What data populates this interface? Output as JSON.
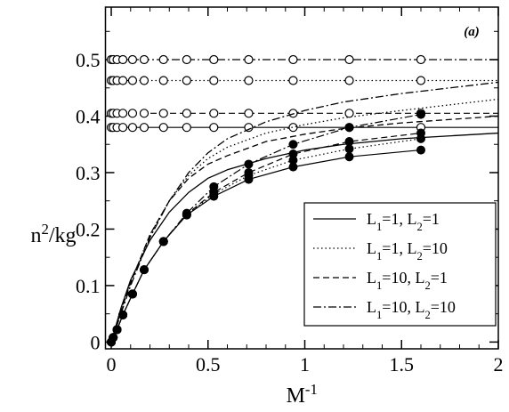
{
  "chart_data": {
    "type": "line",
    "annotation": "(a)",
    "xlabel": [
      "M",
      "-1"
    ],
    "ylabel": [
      "n",
      "2",
      "/kg"
    ],
    "xlim": [
      -0.03,
      2
    ],
    "ylim": [
      -0.012,
      0.593
    ],
    "xticks": [
      0,
      0.5,
      1,
      1.5,
      2
    ],
    "yticks": [
      0,
      0.1,
      0.2,
      0.3,
      0.4,
      0.5
    ],
    "xminorticks": [
      0.1,
      0.2,
      0.3,
      0.4,
      0.6,
      0.7,
      0.8,
      0.9,
      1.1,
      1.2,
      1.3,
      1.4,
      1.6,
      1.7,
      1.8,
      1.9
    ],
    "yminorticks": [
      0.05,
      0.15,
      0.25,
      0.35,
      0.45,
      0.55
    ],
    "color": "#000000",
    "legend": "lower right",
    "open_x": [
      0,
      0.01,
      0.03,
      0.06,
      0.11,
      0.17,
      0.27,
      0.39,
      0.53,
      0.71,
      0.94,
      1.23,
      1.6
    ],
    "points_x": [
      0,
      0.01,
      0.03,
      0.06,
      0.11,
      0.17,
      0.27,
      0.39,
      0.53,
      0.71,
      0.94,
      1.23,
      1.6
    ],
    "curve_x": [
      0,
      0.05,
      0.1,
      0.2,
      0.3,
      0.4,
      0.5,
      0.6,
      0.8,
      1.0,
      1.2,
      1.5,
      2.0
    ],
    "series": [
      {
        "name": [
          "L",
          "1",
          "=1, L",
          "2",
          "=1"
        ],
        "dash": "none",
        "level": 0.38,
        "curve": [
          0,
          0.06,
          0.11,
          0.18,
          0.23,
          0.265,
          0.29,
          0.305,
          0.325,
          0.34,
          0.35,
          0.36,
          0.37
        ],
        "points": [
          0,
          0.008,
          0.022,
          0.048,
          0.085,
          0.128,
          0.178,
          0.225,
          0.258,
          0.288,
          0.31,
          0.328,
          0.34
        ]
      },
      {
        "name": [
          "L",
          "1",
          "=1, L",
          "2",
          "=10"
        ],
        "dash": "1.5,3",
        "level": 0.463,
        "curve": [
          0,
          0.055,
          0.105,
          0.19,
          0.25,
          0.295,
          0.325,
          0.345,
          0.37,
          0.385,
          0.397,
          0.41,
          0.43
        ],
        "points": [
          0,
          0.008,
          0.022,
          0.048,
          0.085,
          0.128,
          0.178,
          0.225,
          0.262,
          0.295,
          0.322,
          0.342,
          0.36
        ]
      },
      {
        "name": [
          "L",
          "1",
          "=10, L",
          "2",
          "=1"
        ],
        "dash": "7,4",
        "level": 0.405,
        "curve": [
          0,
          0.055,
          0.105,
          0.19,
          0.25,
          0.29,
          0.315,
          0.33,
          0.355,
          0.368,
          0.378,
          0.388,
          0.4
        ],
        "points": [
          0,
          0.008,
          0.022,
          0.048,
          0.085,
          0.128,
          0.178,
          0.226,
          0.265,
          0.3,
          0.333,
          0.355,
          0.37
        ]
      },
      {
        "name": [
          "L",
          "1",
          "=10, L",
          "2",
          "=10"
        ],
        "dash": "9,3,2,3",
        "level": 0.5,
        "curve": [
          0,
          0.05,
          0.1,
          0.185,
          0.25,
          0.3,
          0.335,
          0.36,
          0.39,
          0.41,
          0.425,
          0.44,
          0.46
        ],
        "points": [
          0,
          0.008,
          0.022,
          0.048,
          0.085,
          0.128,
          0.178,
          0.228,
          0.275,
          0.315,
          0.35,
          0.38,
          0.403
        ]
      }
    ]
  }
}
